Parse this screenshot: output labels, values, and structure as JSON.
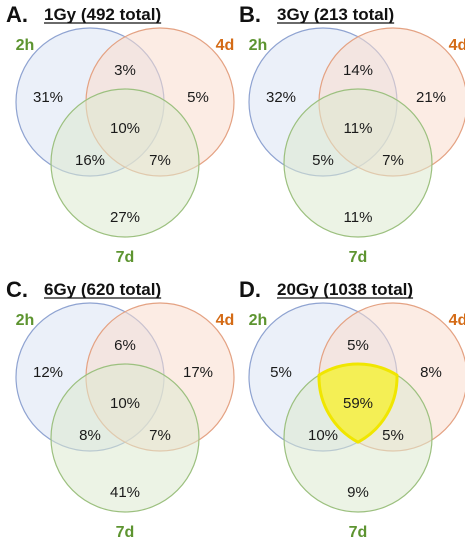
{
  "colors": {
    "c2h_fill": "#dbe3f4",
    "c2h_stroke": "#8fa3d1",
    "c4d_fill": "#f9dccd",
    "c4d_stroke": "#e4a283",
    "c7d_fill": "#dceacf",
    "c7d_stroke": "#9cc07f",
    "label_2h": "#5d9430",
    "label_4d": "#d46b16",
    "label_7d": "#5d9430",
    "highlight_fill": "#f5f04a",
    "highlight_stroke": "#f0e600"
  },
  "panels": [
    {
      "letter": "A.",
      "title": "1Gy (492 total)",
      "sets": {
        "a": "2h",
        "b": "4d",
        "c": "7d"
      },
      "regions": {
        "a_only": "31%",
        "b_only": "5%",
        "c_only": "27%",
        "ab": "3%",
        "ac": "16%",
        "bc": "7%",
        "abc": "10%"
      },
      "highlight": ""
    },
    {
      "letter": "B.",
      "title": "3Gy (213 total)",
      "sets": {
        "a": "2h",
        "b": "4d",
        "c": "7d"
      },
      "regions": {
        "a_only": "32%",
        "b_only": "21%",
        "c_only": "11%",
        "ab": "14%",
        "ac": "5%",
        "bc": "7%",
        "abc": "11%"
      },
      "highlight": ""
    },
    {
      "letter": "C.",
      "title": "6Gy (620 total)",
      "sets": {
        "a": "2h",
        "b": "4d",
        "c": "7d"
      },
      "regions": {
        "a_only": "12%",
        "b_only": "17%",
        "c_only": "41%",
        "ab": "6%",
        "ac": "8%",
        "bc": "7%",
        "abc": "10%"
      },
      "highlight": ""
    },
    {
      "letter": "D.",
      "title": "20Gy (1038 total)",
      "sets": {
        "a": "2h",
        "b": "4d",
        "c": "7d"
      },
      "regions": {
        "a_only": "5%",
        "b_only": "8%",
        "c_only": "9%",
        "ab": "5%",
        "ac": "10%",
        "bc": "5%",
        "abc": "59%"
      },
      "highlight": "abc"
    }
  ]
}
